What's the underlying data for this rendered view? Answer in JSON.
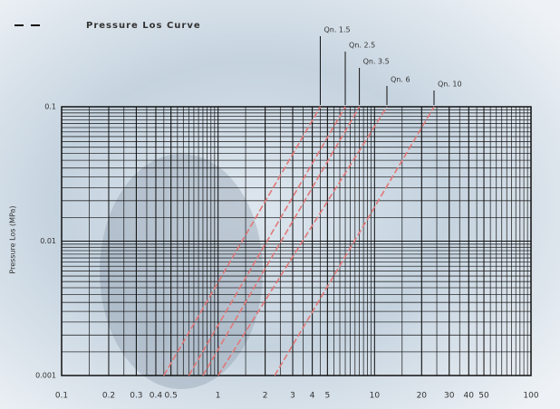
{
  "chart_data": {
    "type": "line",
    "title": "Pressure Los Curve",
    "y_label": "Pressure Los (MPa)",
    "log_x": true,
    "log_y": true,
    "grid": true,
    "xlim": [
      0.1,
      100
    ],
    "xticks": [
      0.1,
      0.2,
      0.3,
      0.4,
      0.5,
      1,
      2,
      3,
      4,
      5,
      10,
      20,
      30,
      40,
      50,
      100
    ],
    "ylim": [
      0.001,
      0.1
    ],
    "yticks": [
      0.001,
      0.01,
      0.1
    ],
    "series": [
      {
        "name": "Qn. 1.5",
        "color": "#e07878",
        "x": [
          0.45,
          4.5
        ],
        "values": [
          0.001,
          0.1
        ]
      },
      {
        "name": "Qn. 2.5",
        "color": "#e07878",
        "x": [
          0.65,
          6.5
        ],
        "values": [
          0.001,
          0.1
        ]
      },
      {
        "name": "Qn. 3.5",
        "color": "#e07878",
        "x": [
          0.8,
          8
        ],
        "values": [
          0.001,
          0.1
        ]
      },
      {
        "name": "Qn. 6",
        "color": "#e07878",
        "x": [
          1,
          12
        ],
        "values": [
          0.001,
          0.1
        ]
      },
      {
        "name": "Qn. 10",
        "color": "#e07878",
        "x": [
          2.3,
          24
        ],
        "values": [
          0.001,
          0.1
        ]
      }
    ]
  }
}
